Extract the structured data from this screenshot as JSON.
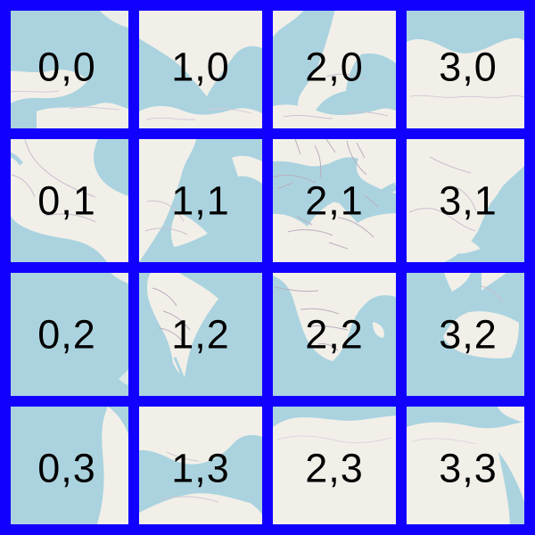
{
  "map": {
    "colors": {
      "grid": "#1200ff",
      "water": "#aad3df",
      "land": "#f2efe9",
      "border": "#b7aebd",
      "label": "#000000"
    },
    "tiles": [
      [
        {
          "label": "0,0"
        },
        {
          "label": "1,0"
        },
        {
          "label": "2,0"
        },
        {
          "label": "3,0"
        }
      ],
      [
        {
          "label": "0,1"
        },
        {
          "label": "1,1"
        },
        {
          "label": "2,1"
        },
        {
          "label": "3,1"
        }
      ],
      [
        {
          "label": "0,2"
        },
        {
          "label": "1,2"
        },
        {
          "label": "2,2"
        },
        {
          "label": "3,2"
        }
      ],
      [
        {
          "label": "0,3"
        },
        {
          "label": "1,3"
        },
        {
          "label": "2,3"
        },
        {
          "label": "3,3"
        }
      ]
    ]
  }
}
